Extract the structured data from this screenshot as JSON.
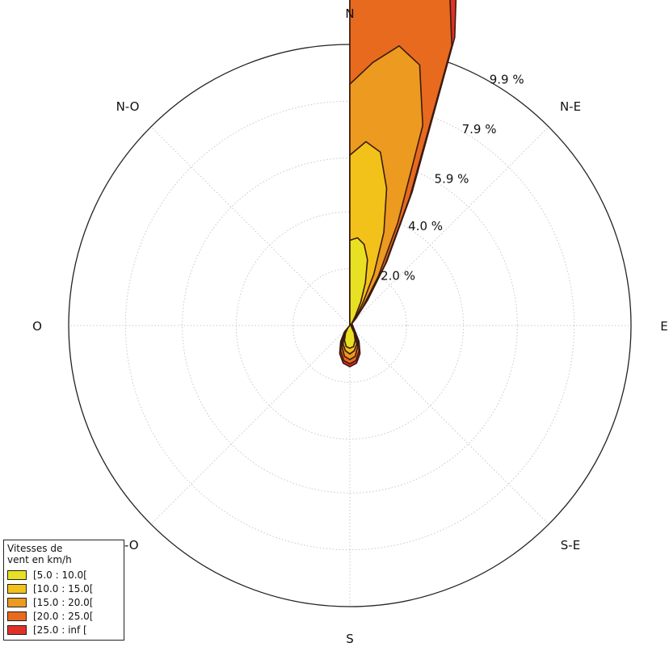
{
  "chart_data": {
    "type": "windrose",
    "title": "",
    "directions": [
      "N",
      "N-E",
      "E",
      "S-E",
      "S",
      "S-O",
      "O",
      "N-O"
    ],
    "radial_ticks": [
      "2.0 %",
      "4.0 %",
      "5.9 %",
      "7.9 %",
      "9.9 %"
    ],
    "radial_tick_values": [
      2.0,
      4.0,
      5.9,
      7.9,
      9.9
    ],
    "rmax": 9.9,
    "grid": true,
    "legend": {
      "title": "Vitesses de\nvent en km/h",
      "position": "bottom-left"
    },
    "theta_deg": [
      0,
      5,
      10,
      15,
      20,
      25,
      30,
      35,
      40,
      45,
      140,
      150,
      160,
      170,
      180,
      190,
      200,
      210,
      220
    ],
    "series": [
      {
        "name": "[5.0 : 10.0[",
        "color": "#e8e022",
        "values": [
          3.0,
          3.1,
          2.9,
          2.4,
          1.6,
          0.9,
          0.4,
          0.2,
          0.1,
          0.05,
          0.1,
          0.3,
          0.55,
          0.75,
          0.8,
          0.75,
          0.55,
          0.3,
          0.1
        ]
      },
      {
        "name": "[10.0 : 15.0[",
        "color": "#f2c21b",
        "values": [
          6.0,
          6.5,
          6.2,
          5.0,
          3.5,
          2.0,
          0.9,
          0.4,
          0.2,
          0.1,
          0.15,
          0.4,
          0.7,
          0.9,
          1.0,
          0.9,
          0.7,
          0.4,
          0.15
        ]
      },
      {
        "name": "[15.0 : 20.0[",
        "color": "#ec9a20",
        "values": [
          8.5,
          9.3,
          10.0,
          9.5,
          7.5,
          4.0,
          2.0,
          0.8,
          0.3,
          0.1,
          0.2,
          0.5,
          0.8,
          1.1,
          1.2,
          1.1,
          0.8,
          0.5,
          0.2
        ]
      },
      {
        "name": "[20.0 : 25.0[",
        "color": "#e86a1f",
        "values": [
          11.7,
          12.0,
          12.9,
          13.4,
          10.5,
          5.0,
          2.5,
          1.0,
          0.3,
          0.1,
          0.25,
          0.6,
          0.95,
          1.25,
          1.35,
          1.25,
          0.95,
          0.6,
          0.25
        ]
      },
      {
        "name": "[25.0 : inf [",
        "color": "#e0302a",
        "values": [
          12.1,
          13.5,
          15.0,
          14.8,
          10.8,
          5.2,
          2.6,
          1.1,
          0.35,
          0.1,
          0.3,
          0.65,
          1.05,
          1.35,
          1.45,
          1.35,
          1.05,
          0.65,
          0.3
        ]
      }
    ]
  }
}
